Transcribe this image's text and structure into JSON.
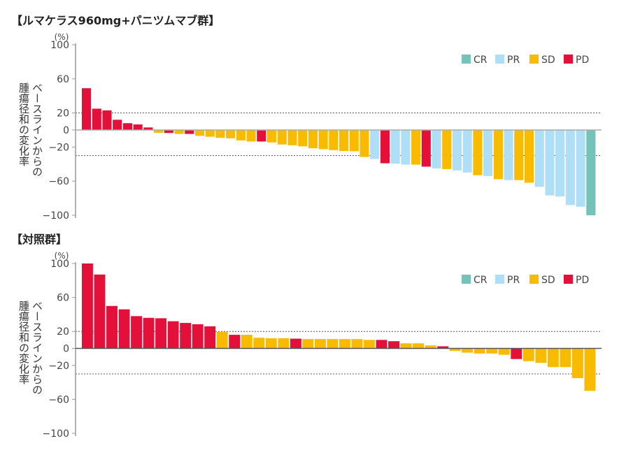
{
  "colors": {
    "CR": "#76c1b8",
    "PR": "#aedff6",
    "SD": "#f9bb00",
    "PD": "#e5103a"
  },
  "chart_data": [
    {
      "type": "bar",
      "title": "【ルマケラス960mg+パニツムマブ群】",
      "ylabel_lines": [
        "ベースラインからの",
        "腫瘍径和の変化率"
      ],
      "yunit": "(%)",
      "ylim": [
        -100,
        100
      ],
      "yticks": [
        100,
        60,
        20,
        0,
        -20,
        -60,
        -100
      ],
      "ytick_labels": [
        "100",
        "60",
        "20",
        "0",
        "−20",
        "−60",
        "−100"
      ],
      "reference_lines": [
        20,
        -30
      ],
      "legend": [
        "CR",
        "PR",
        "SD",
        "PD"
      ],
      "legend_position": "top-right",
      "values": [
        49,
        25,
        23,
        12,
        8,
        6.5,
        3,
        -3.3,
        -3.5,
        -4.6,
        -4.6,
        -6.8,
        -7.9,
        -9.2,
        -9.7,
        -12.2,
        -13.5,
        -13.5,
        -14.6,
        -17,
        -17.9,
        -19.2,
        -21.4,
        -22.5,
        -23.6,
        -24.7,
        -24.9,
        -31.6,
        -34,
        -39,
        -39.5,
        -40.6,
        -40.6,
        -43,
        -45,
        -45.8,
        -47.4,
        -49.8,
        -53,
        -54,
        -57.7,
        -58.8,
        -58.8,
        -61.8,
        -66.7,
        -76.7,
        -78,
        -88,
        -90,
        -100
      ],
      "response": [
        "PD",
        "PD",
        "PD",
        "PD",
        "PD",
        "PD",
        "PD",
        "SD",
        "PD",
        "SD",
        "PD",
        "SD",
        "SD",
        "SD",
        "SD",
        "SD",
        "SD",
        "PD",
        "SD",
        "SD",
        "SD",
        "SD",
        "SD",
        "SD",
        "SD",
        "SD",
        "SD",
        "SD",
        "PR",
        "PD",
        "PR",
        "PR",
        "SD",
        "PD",
        "PR",
        "SD",
        "PR",
        "PR",
        "SD",
        "PR",
        "SD",
        "PR",
        "SD",
        "SD",
        "PR",
        "PR",
        "PR",
        "PR",
        "PR",
        "CR"
      ]
    },
    {
      "type": "bar",
      "title": "【対照群】",
      "ylabel_lines": [
        "ベースラインからの",
        "腫瘍径和の変化率"
      ],
      "yunit": "(%)",
      "ylim": [
        -100,
        100
      ],
      "yticks": [
        100,
        60,
        20,
        0,
        -20,
        -60,
        -100
      ],
      "ytick_labels": [
        "100",
        "60",
        "20",
        "0",
        "−20",
        "−60",
        "−100"
      ],
      "reference_lines": [
        20,
        -30
      ],
      "legend": [
        "CR",
        "PR",
        "SD",
        "PD"
      ],
      "legend_position": "top-right",
      "values": [
        100,
        87,
        50,
        46,
        38,
        36,
        35.5,
        32,
        30,
        28.5,
        26,
        19.5,
        16,
        16,
        12.5,
        12,
        12,
        11.5,
        11,
        11,
        11,
        11,
        11,
        10,
        10,
        8.5,
        6,
        6,
        3.5,
        2.5,
        -3,
        -5,
        -6,
        -6,
        -7.5,
        -12.5,
        -15,
        -17,
        -22,
        -22,
        -35,
        -50
      ],
      "response": [
        "PD",
        "PD",
        "PD",
        "PD",
        "PD",
        "PD",
        "PD",
        "PD",
        "PD",
        "PD",
        "PD",
        "SD",
        "PD",
        "SD",
        "SD",
        "SD",
        "SD",
        "PD",
        "SD",
        "SD",
        "SD",
        "SD",
        "SD",
        "SD",
        "PD",
        "PD",
        "SD",
        "SD",
        "SD",
        "PD",
        "SD",
        "SD",
        "SD",
        "SD",
        "SD",
        "PD",
        "SD",
        "SD",
        "SD",
        "SD",
        "SD",
        "SD"
      ]
    }
  ]
}
